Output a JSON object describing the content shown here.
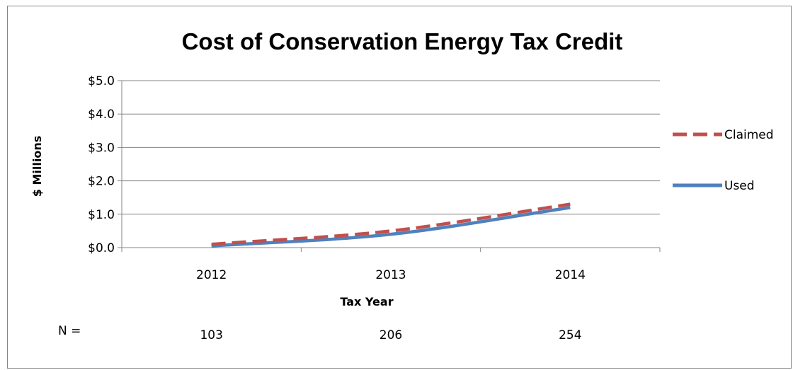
{
  "chart_data": {
    "type": "line",
    "title": "Cost of Conservation Energy Tax Credit",
    "xlabel": "Tax Year",
    "ylabel": "$ Millions",
    "categories": [
      "2012",
      "2013",
      "2014"
    ],
    "y_ticks": [
      "$0.0",
      "$1.0",
      "$2.0",
      "$3.0",
      "$4.0",
      "$5.0"
    ],
    "ylim": [
      0,
      5
    ],
    "grid": true,
    "legend_position": "right",
    "series": [
      {
        "name": "Claimed",
        "values": [
          0.1,
          0.5,
          1.3
        ],
        "color": "#c0504d",
        "style": "dashed"
      },
      {
        "name": "Used",
        "values": [
          0.05,
          0.4,
          1.2
        ],
        "color": "#4f81bd",
        "style": "solid"
      }
    ],
    "n_label": "N =",
    "n_values": [
      "103",
      "206",
      "254"
    ]
  }
}
